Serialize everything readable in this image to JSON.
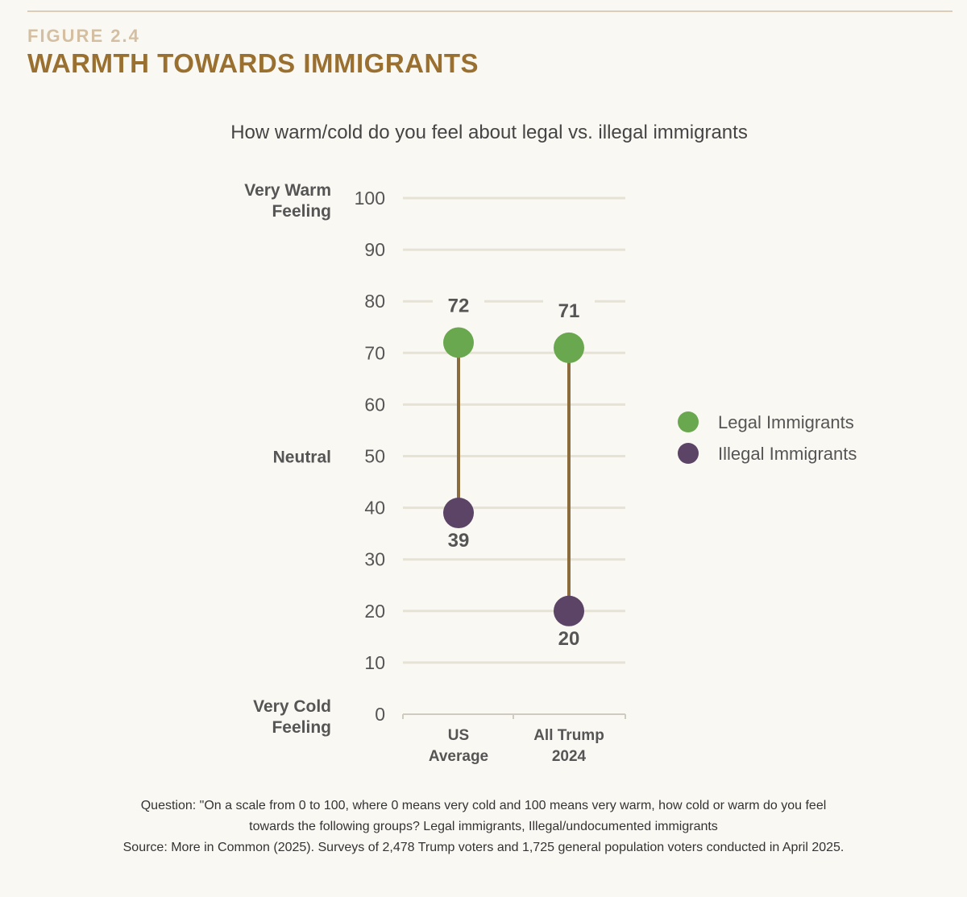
{
  "figure": {
    "label": "FIGURE 2.4",
    "title": "WARMTH TOWARDS IMMIGRANTS"
  },
  "colors": {
    "accent_title": "#9a7030",
    "accent_label": "#d4bfa2",
    "connector": "#8c6b3c",
    "legal": "#6aa84f",
    "illegal": "#5c4466",
    "grid": "#e6e2d4"
  },
  "chart_data": {
    "type": "dot-range",
    "title": "How warm/cold do you feel about legal vs. illegal immigrants",
    "categories": [
      "US\nAverage",
      "All Trump\n2024"
    ],
    "series": [
      {
        "name": "Legal Immigrants",
        "values": [
          72,
          71
        ],
        "color": "#6aa84f"
      },
      {
        "name": "Illegal Immigrants",
        "values": [
          39,
          20
        ],
        "color": "#5c4466"
      }
    ],
    "ylim": [
      0,
      100
    ],
    "yticks": [
      0,
      10,
      20,
      30,
      40,
      50,
      60,
      70,
      80,
      90,
      100
    ],
    "y_annotations": [
      {
        "value": 100,
        "text": "Very Warm\nFeeling"
      },
      {
        "value": 50,
        "text": "Neutral"
      },
      {
        "value": 0,
        "text": "Very Cold\nFeeling"
      }
    ],
    "grid": true,
    "legend_position": "right"
  },
  "footnote": {
    "question_line1": "Question: \"On a scale from 0 to 100, where 0 means very cold and 100 means very warm, how cold or warm do you feel",
    "question_line2": "towards the following groups?  Legal immigrants, Illegal/undocumented immigrants",
    "source": "Source: More in Common (2025). Surveys of 2,478 Trump voters and 1,725 general population voters conducted in April 2025."
  }
}
